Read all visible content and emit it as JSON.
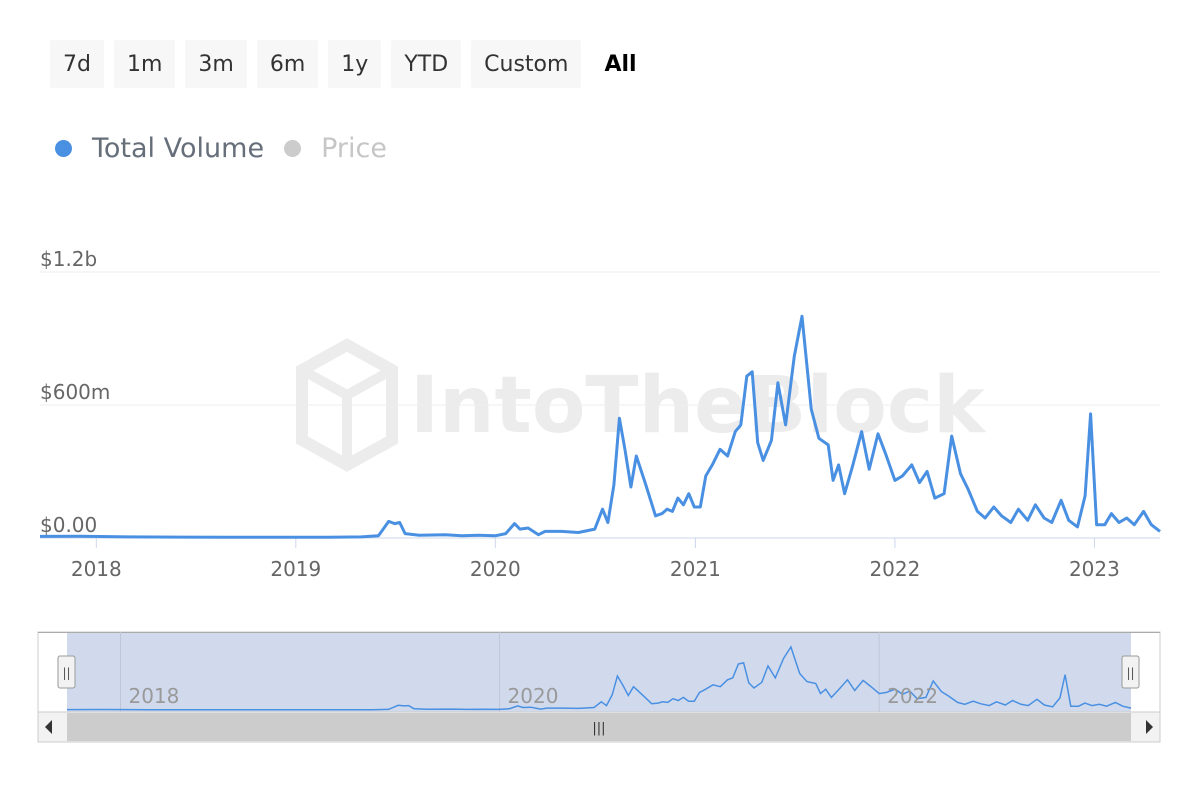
{
  "range_buttons": [
    "7d",
    "1m",
    "3m",
    "6m",
    "1y",
    "YTD",
    "Custom",
    "All"
  ],
  "active_range": "All",
  "legend": [
    {
      "label": "Total Volume",
      "color": "#4a90e2",
      "active": true
    },
    {
      "label": "Price",
      "color": "#cccccc",
      "active": false
    }
  ],
  "watermark": "IntoTheBlock",
  "navigator": {
    "year_labels": [
      "2018",
      "2020",
      "2022"
    ],
    "handle_glyph": "||",
    "scroll_grip": "|||",
    "selection_color": "#ccd6eb"
  },
  "chart_data": {
    "type": "line",
    "title": "",
    "xlabel": "",
    "ylabel": "",
    "x_range": [
      "2017-09-20",
      "2023-05-01"
    ],
    "ylim": [
      0,
      1200000000
    ],
    "y_ticks": [
      {
        "value": 0,
        "label": "$0.00"
      },
      {
        "value": 600000000,
        "label": "$600m"
      },
      {
        "value": 1200000000,
        "label": "$1.2b"
      }
    ],
    "x_ticks": [
      {
        "date": "2018-01-01",
        "label": "2018"
      },
      {
        "date": "2019-01-01",
        "label": "2019"
      },
      {
        "date": "2020-01-01",
        "label": "2020"
      },
      {
        "date": "2021-01-01",
        "label": "2021"
      },
      {
        "date": "2022-01-01",
        "label": "2022"
      },
      {
        "date": "2023-01-01",
        "label": "2023"
      }
    ],
    "grid": true,
    "legend_position": "top-left",
    "series": [
      {
        "name": "Total Volume",
        "color": "#4a90e2",
        "points": [
          [
            "2017-09-20",
            7000000
          ],
          [
            "2017-12-01",
            8000000
          ],
          [
            "2018-03-01",
            5000000
          ],
          [
            "2018-06-01",
            4000000
          ],
          [
            "2018-09-01",
            3000000
          ],
          [
            "2018-12-01",
            3000000
          ],
          [
            "2019-03-01",
            3000000
          ],
          [
            "2019-05-01",
            5000000
          ],
          [
            "2019-06-01",
            10000000
          ],
          [
            "2019-06-20",
            75000000
          ],
          [
            "2019-07-01",
            65000000
          ],
          [
            "2019-07-10",
            70000000
          ],
          [
            "2019-07-20",
            20000000
          ],
          [
            "2019-08-15",
            12000000
          ],
          [
            "2019-10-01",
            15000000
          ],
          [
            "2019-11-01",
            10000000
          ],
          [
            "2019-12-01",
            12000000
          ],
          [
            "2020-01-01",
            10000000
          ],
          [
            "2020-01-20",
            20000000
          ],
          [
            "2020-02-05",
            65000000
          ],
          [
            "2020-02-15",
            40000000
          ],
          [
            "2020-03-01",
            45000000
          ],
          [
            "2020-03-20",
            15000000
          ],
          [
            "2020-04-01",
            30000000
          ],
          [
            "2020-05-01",
            30000000
          ],
          [
            "2020-06-01",
            25000000
          ],
          [
            "2020-07-01",
            40000000
          ],
          [
            "2020-07-15",
            130000000
          ],
          [
            "2020-07-25",
            70000000
          ],
          [
            "2020-08-05",
            240000000
          ],
          [
            "2020-08-15",
            540000000
          ],
          [
            "2020-08-25",
            400000000
          ],
          [
            "2020-09-05",
            230000000
          ],
          [
            "2020-09-15",
            370000000
          ],
          [
            "2020-10-01",
            250000000
          ],
          [
            "2020-10-20",
            100000000
          ],
          [
            "2020-11-01",
            110000000
          ],
          [
            "2020-11-10",
            130000000
          ],
          [
            "2020-11-20",
            120000000
          ],
          [
            "2020-11-30",
            180000000
          ],
          [
            "2020-12-10",
            150000000
          ],
          [
            "2020-12-20",
            200000000
          ],
          [
            "2020-12-30",
            140000000
          ],
          [
            "2021-01-10",
            140000000
          ],
          [
            "2021-01-20",
            280000000
          ],
          [
            "2021-02-01",
            330000000
          ],
          [
            "2021-02-15",
            400000000
          ],
          [
            "2021-03-01",
            370000000
          ],
          [
            "2021-03-15",
            480000000
          ],
          [
            "2021-03-25",
            510000000
          ],
          [
            "2021-04-05",
            730000000
          ],
          [
            "2021-04-15",
            750000000
          ],
          [
            "2021-04-25",
            430000000
          ],
          [
            "2021-05-05",
            350000000
          ],
          [
            "2021-05-20",
            440000000
          ],
          [
            "2021-06-01",
            700000000
          ],
          [
            "2021-06-15",
            510000000
          ],
          [
            "2021-07-01",
            820000000
          ],
          [
            "2021-07-15",
            1000000000
          ],
          [
            "2021-08-01",
            580000000
          ],
          [
            "2021-08-15",
            450000000
          ],
          [
            "2021-09-01",
            420000000
          ],
          [
            "2021-09-10",
            260000000
          ],
          [
            "2021-09-20",
            330000000
          ],
          [
            "2021-10-01",
            200000000
          ],
          [
            "2021-10-15",
            320000000
          ],
          [
            "2021-11-01",
            480000000
          ],
          [
            "2021-11-15",
            310000000
          ],
          [
            "2021-12-01",
            470000000
          ],
          [
            "2021-12-15",
            380000000
          ],
          [
            "2022-01-01",
            260000000
          ],
          [
            "2022-01-15",
            280000000
          ],
          [
            "2022-02-01",
            330000000
          ],
          [
            "2022-02-15",
            250000000
          ],
          [
            "2022-03-01",
            300000000
          ],
          [
            "2022-03-15",
            180000000
          ],
          [
            "2022-04-01",
            200000000
          ],
          [
            "2022-04-15",
            460000000
          ],
          [
            "2022-05-01",
            290000000
          ],
          [
            "2022-05-15",
            220000000
          ],
          [
            "2022-06-01",
            120000000
          ],
          [
            "2022-06-15",
            90000000
          ],
          [
            "2022-07-01",
            140000000
          ],
          [
            "2022-07-15",
            100000000
          ],
          [
            "2022-08-01",
            70000000
          ],
          [
            "2022-08-15",
            130000000
          ],
          [
            "2022-09-01",
            80000000
          ],
          [
            "2022-09-15",
            150000000
          ],
          [
            "2022-10-01",
            90000000
          ],
          [
            "2022-10-15",
            70000000
          ],
          [
            "2022-11-01",
            170000000
          ],
          [
            "2022-11-15",
            80000000
          ],
          [
            "2022-12-01",
            50000000
          ],
          [
            "2022-12-15",
            190000000
          ],
          [
            "2022-12-25",
            560000000
          ],
          [
            "2023-01-05",
            60000000
          ],
          [
            "2023-01-20",
            60000000
          ],
          [
            "2023-02-01",
            110000000
          ],
          [
            "2023-02-15",
            70000000
          ],
          [
            "2023-03-01",
            90000000
          ],
          [
            "2023-03-15",
            60000000
          ],
          [
            "2023-04-01",
            120000000
          ],
          [
            "2023-04-15",
            60000000
          ],
          [
            "2023-05-01",
            30000000
          ]
        ]
      }
    ]
  }
}
